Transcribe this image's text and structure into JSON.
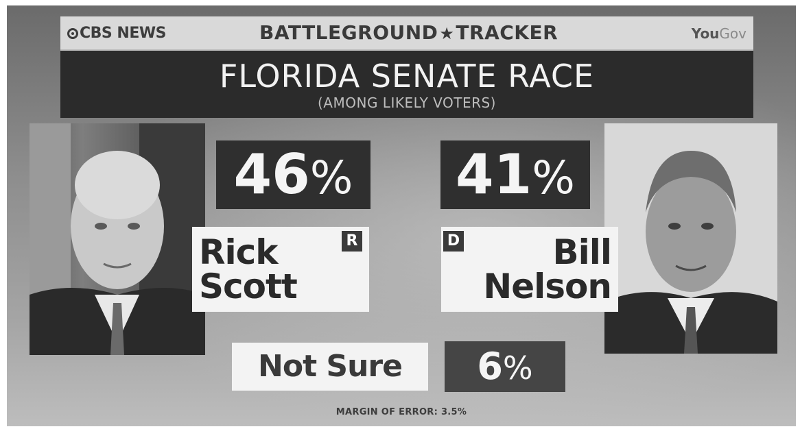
{
  "header": {
    "network": "CBS NEWS",
    "tracker_left": "BATTLEGROUND",
    "tracker_star": "★",
    "tracker_right": "TRACKER",
    "pollster_you": "You",
    "pollster_gov": "Gov"
  },
  "title": "FLORIDA SENATE RACE",
  "subtitle": "(AMONG LIKELY VOTERS)",
  "candidates": [
    {
      "first": "Rick",
      "last": "Scott",
      "party": "R",
      "pct_num": "46",
      "pct_sym": "%"
    },
    {
      "first": "Bill",
      "last": "Nelson",
      "party": "D",
      "pct_num": "41",
      "pct_sym": "%"
    }
  ],
  "not_sure": {
    "label": "Not Sure",
    "pct_num": "6",
    "pct_sym": "%"
  },
  "margin_of_error": "MARGIN OF ERROR: 3.5%",
  "colors": {
    "dark_box": "#2f2f2f",
    "card": "#f3f3f3",
    "title_bar": "#2b2b2b"
  }
}
